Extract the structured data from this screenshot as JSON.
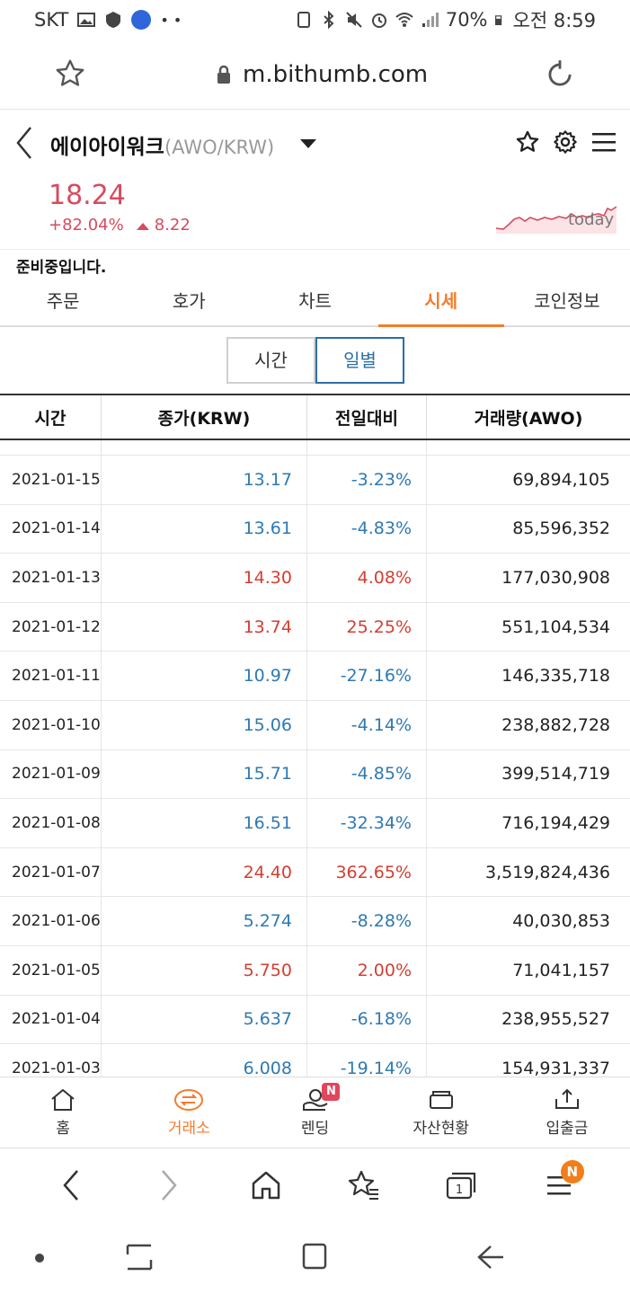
{
  "status_bar": {
    "carrier": "SKT",
    "battery": "70%",
    "time": "오전 8:59"
  },
  "browser": {
    "url": "m.bithumb.com"
  },
  "coin": {
    "name": "에이아이워크",
    "pair": "(AWO/KRW)",
    "price": "18.24",
    "change_pct": "+82.04%",
    "change_abs": "8.22",
    "sparkline_label": "today"
  },
  "notice": "준비중입니다.",
  "tabs": [
    "주문",
    "호가",
    "차트",
    "시세",
    "코인정보"
  ],
  "active_tab": "시세",
  "toggle": {
    "time": "시간",
    "daily": "일별",
    "active": "일별"
  },
  "table": {
    "headers": [
      "시간",
      "종가(KRW)",
      "전일대비",
      "거래량(AWO)"
    ],
    "rows": [
      {
        "date": "2021-01-15",
        "close": "13.17",
        "change": "-3.23%",
        "volume": "69,894,105",
        "dir": "down"
      },
      {
        "date": "2021-01-14",
        "close": "13.61",
        "change": "-4.83%",
        "volume": "85,596,352",
        "dir": "down"
      },
      {
        "date": "2021-01-13",
        "close": "14.30",
        "change": "4.08%",
        "volume": "177,030,908",
        "dir": "up"
      },
      {
        "date": "2021-01-12",
        "close": "13.74",
        "change": "25.25%",
        "volume": "551,104,534",
        "dir": "up"
      },
      {
        "date": "2021-01-11",
        "close": "10.97",
        "change": "-27.16%",
        "volume": "146,335,718",
        "dir": "down"
      },
      {
        "date": "2021-01-10",
        "close": "15.06",
        "change": "-4.14%",
        "volume": "238,882,728",
        "dir": "down"
      },
      {
        "date": "2021-01-09",
        "close": "15.71",
        "change": "-4.85%",
        "volume": "399,514,719",
        "dir": "down"
      },
      {
        "date": "2021-01-08",
        "close": "16.51",
        "change": "-32.34%",
        "volume": "716,194,429",
        "dir": "down"
      },
      {
        "date": "2021-01-07",
        "close": "24.40",
        "change": "362.65%",
        "volume": "3,519,824,436",
        "dir": "up"
      },
      {
        "date": "2021-01-06",
        "close": "5.274",
        "change": "-8.28%",
        "volume": "40,030,853",
        "dir": "down"
      },
      {
        "date": "2021-01-05",
        "close": "5.750",
        "change": "2.00%",
        "volume": "71,041,157",
        "dir": "up"
      },
      {
        "date": "2021-01-04",
        "close": "5.637",
        "change": "-6.18%",
        "volume": "238,955,527",
        "dir": "down"
      },
      {
        "date": "2021-01-03",
        "close": "6.008",
        "change": "-19.14%",
        "volume": "154,931,337",
        "dir": "down"
      }
    ]
  },
  "bottom_nav": [
    {
      "label": "홈",
      "icon": "home-icon"
    },
    {
      "label": "거래소",
      "icon": "exchange-icon",
      "active": true
    },
    {
      "label": "렌딩",
      "icon": "lending-icon",
      "badge": "N"
    },
    {
      "label": "자산현황",
      "icon": "wallet-icon"
    },
    {
      "label": "입출금",
      "icon": "deposit-icon"
    }
  ],
  "browser_nav": {
    "menu_badge": "N",
    "tabs_count": "1"
  },
  "colors": {
    "accent": "#f57c2b",
    "up": "#d23f31",
    "down": "#2e79b3",
    "price": "#d64b5f"
  }
}
